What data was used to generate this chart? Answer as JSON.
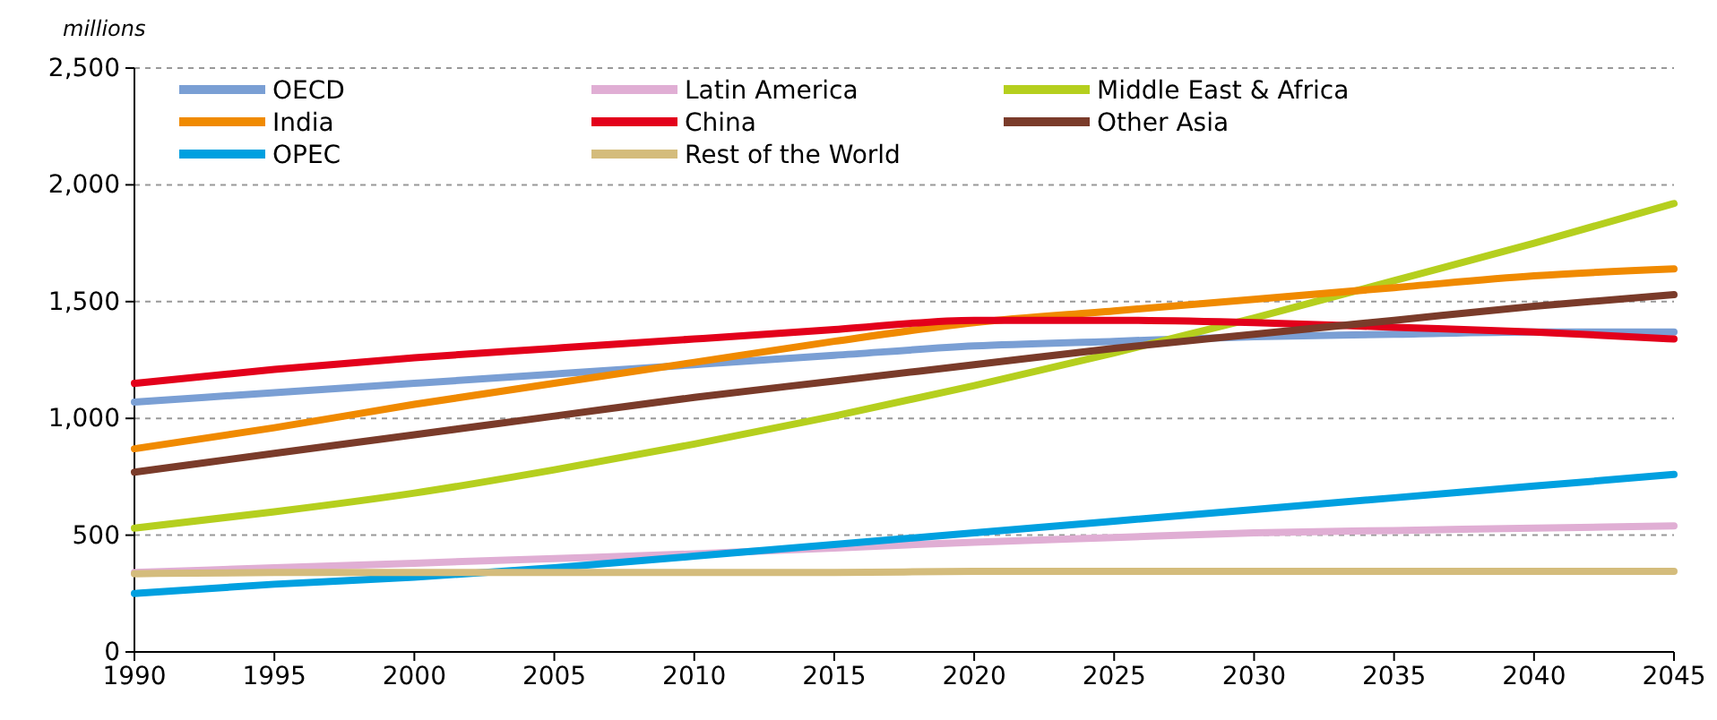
{
  "chart_data": {
    "type": "line",
    "ylabel": "millions",
    "x": [
      1990,
      1995,
      2000,
      2005,
      2010,
      2015,
      2020,
      2025,
      2030,
      2035,
      2040,
      2045
    ],
    "xlim": [
      1990,
      2045
    ],
    "xticks": [
      1990,
      1995,
      2000,
      2005,
      2010,
      2015,
      2020,
      2025,
      2030,
      2035,
      2040,
      2045
    ],
    "ylim": [
      0,
      2500
    ],
    "yticks": [
      0,
      {
        "value": 500,
        "label": "500"
      },
      {
        "value": 1000,
        "label": "1,000"
      },
      {
        "value": 1500,
        "label": "1,500"
      },
      {
        "value": 2000,
        "label": "2,000"
      },
      {
        "value": 2500,
        "label": "2,500"
      }
    ],
    "grid": "y",
    "legend": "top",
    "line_style": "solid",
    "marker": "none",
    "series": [
      {
        "name": "OECD",
        "color": "#7a9fd4",
        "values": [
          1070,
          1110,
          1150,
          1190,
          1230,
          1270,
          1310,
          1330,
          1350,
          1360,
          1370,
          1370
        ]
      },
      {
        "name": "Latin America",
        "color": "#e0aed4",
        "values": [
          340,
          360,
          380,
          400,
          420,
          445,
          470,
          490,
          510,
          520,
          530,
          540
        ]
      },
      {
        "name": "Middle East & Africa",
        "color": "#b5cf1e",
        "values": [
          530,
          600,
          680,
          780,
          890,
          1010,
          1140,
          1280,
          1430,
          1590,
          1750,
          1920
        ]
      },
      {
        "name": "India",
        "color": "#f08a00",
        "values": [
          870,
          960,
          1060,
          1150,
          1240,
          1330,
          1410,
          1460,
          1510,
          1560,
          1610,
          1640
        ]
      },
      {
        "name": "China",
        "color": "#e3001b",
        "values": [
          1150,
          1210,
          1260,
          1300,
          1340,
          1380,
          1420,
          1420,
          1410,
          1390,
          1370,
          1340
        ]
      },
      {
        "name": "Other Asia",
        "color": "#7a3b2a",
        "values": [
          770,
          850,
          930,
          1010,
          1090,
          1160,
          1230,
          1300,
          1360,
          1420,
          1480,
          1530
        ]
      },
      {
        "name": "OPEC",
        "color": "#00a0e0",
        "values": [
          250,
          290,
          320,
          360,
          410,
          460,
          510,
          560,
          610,
          660,
          710,
          760
        ]
      },
      {
        "name": "Rest of the World",
        "color": "#d4bc7c",
        "values": [
          335,
          340,
          340,
          340,
          340,
          340,
          345,
          345,
          345,
          345,
          345,
          345
        ]
      }
    ]
  }
}
